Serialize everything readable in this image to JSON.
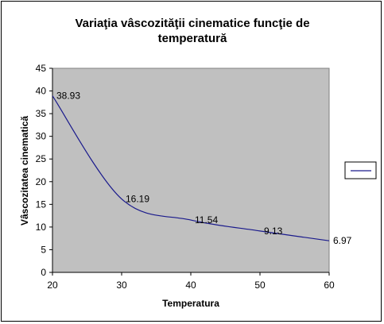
{
  "chart_data": {
    "type": "line",
    "title_lines": [
      "Variaţia vâscozităţii cinematice funcţie de",
      "temperatură"
    ],
    "xlabel": "Temperatura",
    "ylabel": "Vâscozitatea cinematică",
    "x": [
      20,
      30,
      40,
      50,
      60
    ],
    "xlim": [
      20,
      60
    ],
    "xticks": [
      20,
      30,
      40,
      50,
      60
    ],
    "ylim": [
      0,
      45
    ],
    "yticks": [
      0,
      5,
      10,
      15,
      20,
      25,
      30,
      35,
      40,
      45
    ],
    "grid": false,
    "legend": "right",
    "series": [
      {
        "values": [
          38.93,
          16.19,
          11.54,
          9.13,
          6.97
        ],
        "color": "#1a1a8c",
        "smooth": true
      }
    ],
    "data_labels": [
      "38.93",
      "16.19",
      "11.54",
      "9.13",
      "6.97"
    ],
    "plot_background": "#c0c0c0"
  }
}
